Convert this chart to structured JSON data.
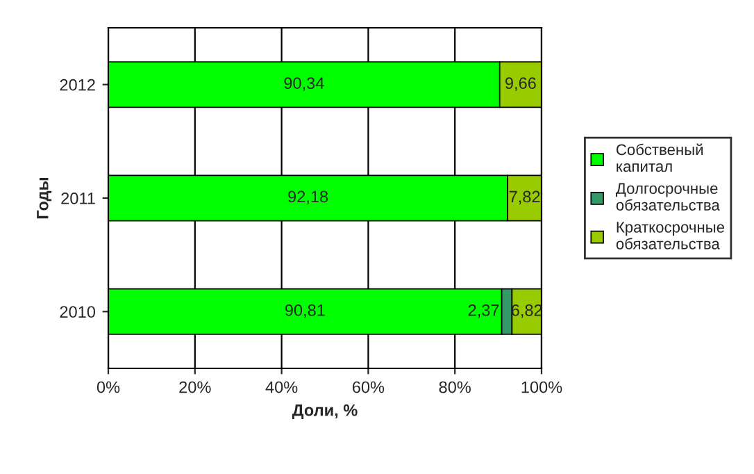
{
  "chart_data": {
    "type": "bar",
    "orientation": "horizontal",
    "stacked": true,
    "categories": [
      "2012",
      "2011",
      "2010"
    ],
    "series": [
      {
        "name": "Собственый\nкапитал",
        "color": "#00ff00",
        "values": [
          90.34,
          92.18,
          90.81
        ],
        "value_labels": [
          "90,34",
          "92,18",
          "90,81"
        ]
      },
      {
        "name": "Долгосрочные\nобязательства",
        "color": "#339966",
        "values": [
          null,
          null,
          2.37
        ],
        "value_labels": [
          null,
          null,
          "2,37"
        ]
      },
      {
        "name": "Краткосрочные\nобязательства",
        "color": "#99cc00",
        "values": [
          9.66,
          7.82,
          6.82
        ],
        "value_labels": [
          "9,66",
          "7,82",
          "6,82"
        ]
      }
    ],
    "xlim": [
      0,
      100
    ],
    "xticks": [
      {
        "value": 0,
        "label": "0%"
      },
      {
        "value": 20,
        "label": "20%"
      },
      {
        "value": 40,
        "label": "40%"
      },
      {
        "value": 60,
        "label": "60%"
      },
      {
        "value": 80,
        "label": "80%"
      },
      {
        "value": 100,
        "label": "100%"
      }
    ],
    "xlabel": "Доли, %",
    "ylabel": "Годы",
    "grid": "x",
    "legend": "right"
  }
}
